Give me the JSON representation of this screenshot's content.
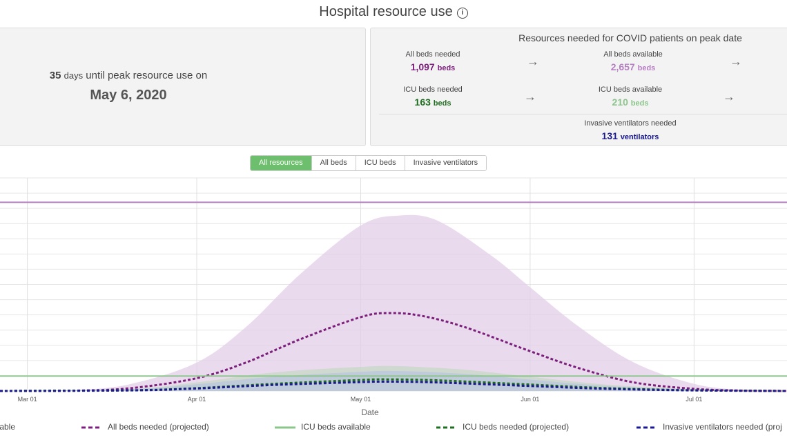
{
  "header": {
    "title": "Hospital resource use",
    "info_icon": "info-circle-icon"
  },
  "peak": {
    "days": "35",
    "days_unit": "days",
    "text": "until peak resource use on",
    "date": "May 6, 2020"
  },
  "resources": {
    "title": "Resources needed for COVID patients on peak date",
    "all_beds_needed": {
      "label": "All beds needed",
      "value": "1,097",
      "unit": "beds"
    },
    "all_beds_available": {
      "label": "All beds available",
      "value": "2,657",
      "unit": "beds"
    },
    "icu_beds_needed": {
      "label": "ICU beds needed",
      "value": "163",
      "unit": "beds"
    },
    "icu_beds_available": {
      "label": "ICU beds available",
      "value": "210",
      "unit": "beds"
    },
    "ventilators_needed": {
      "label": "Invasive ventilators needed",
      "value": "131",
      "unit": "ventilators"
    }
  },
  "tabs": [
    {
      "label": "All resources",
      "active": true
    },
    {
      "label": "All beds",
      "active": false
    },
    {
      "label": "ICU beds",
      "active": false
    },
    {
      "label": "Invasive ventilators",
      "active": false
    }
  ],
  "colors": {
    "all_beds": "#7b1f7b",
    "all_beds_band": "#e3cde8",
    "all_beds_available": "#b57fc2",
    "icu": "#1f6e1f",
    "icu_band": "#b8d8b8",
    "icu_available": "#8cc48c",
    "vent": "#1a1a8c",
    "vent_band": "#b3bde3"
  },
  "chart_data": {
    "type": "line",
    "xlabel": "Date",
    "x_ticks": [
      "Mar 01",
      "Apr 01",
      "May 01",
      "Jun 01",
      "Jul 01"
    ],
    "x_range": [
      "2020-02-25",
      "2020-07-18"
    ],
    "y_range": [
      0,
      3000
    ],
    "grid": true,
    "series": [
      {
        "name": "All beds available",
        "style": "solid",
        "points": [
          [
            "2020-02-25",
            2657
          ],
          [
            "2020-07-18",
            2657
          ]
        ]
      },
      {
        "name": "All beds needed (projected)",
        "style": "dashed",
        "points": [
          [
            "2020-02-25",
            0
          ],
          [
            "2020-03-10",
            5
          ],
          [
            "2020-03-20",
            40
          ],
          [
            "2020-04-01",
            180
          ],
          [
            "2020-04-10",
            400
          ],
          [
            "2020-04-20",
            730
          ],
          [
            "2020-05-01",
            1040
          ],
          [
            "2020-05-06",
            1097
          ],
          [
            "2020-05-12",
            1060
          ],
          [
            "2020-05-20",
            900
          ],
          [
            "2020-06-01",
            560
          ],
          [
            "2020-06-10",
            320
          ],
          [
            "2020-06-20",
            120
          ],
          [
            "2020-07-01",
            30
          ],
          [
            "2020-07-10",
            5
          ],
          [
            "2020-07-18",
            0
          ]
        ],
        "band_upper": [
          [
            "2020-02-25",
            0
          ],
          [
            "2020-03-10",
            15
          ],
          [
            "2020-03-20",
            100
          ],
          [
            "2020-04-01",
            400
          ],
          [
            "2020-04-10",
            900
          ],
          [
            "2020-04-20",
            1650
          ],
          [
            "2020-05-01",
            2330
          ],
          [
            "2020-05-08",
            2470
          ],
          [
            "2020-05-15",
            2400
          ],
          [
            "2020-05-25",
            1900
          ],
          [
            "2020-06-01",
            1460
          ],
          [
            "2020-06-10",
            900
          ],
          [
            "2020-06-20",
            400
          ],
          [
            "2020-07-01",
            100
          ],
          [
            "2020-07-10",
            15
          ],
          [
            "2020-07-18",
            0
          ]
        ],
        "band_lower": [
          [
            "2020-02-25",
            0
          ],
          [
            "2020-07-18",
            0
          ]
        ]
      },
      {
        "name": "ICU beds available",
        "style": "solid",
        "points": [
          [
            "2020-02-25",
            210
          ],
          [
            "2020-07-18",
            210
          ]
        ]
      },
      {
        "name": "ICU beds needed (projected)",
        "style": "dashed",
        "points": [
          [
            "2020-02-25",
            0
          ],
          [
            "2020-03-20",
            10
          ],
          [
            "2020-04-01",
            40
          ],
          [
            "2020-04-15",
            100
          ],
          [
            "2020-05-01",
            155
          ],
          [
            "2020-05-06",
            163
          ],
          [
            "2020-05-15",
            150
          ],
          [
            "2020-06-01",
            90
          ],
          [
            "2020-06-15",
            40
          ],
          [
            "2020-07-01",
            10
          ],
          [
            "2020-07-18",
            0
          ]
        ],
        "band_upper": [
          [
            "2020-02-25",
            0
          ],
          [
            "2020-03-20",
            30
          ],
          [
            "2020-04-01",
            120
          ],
          [
            "2020-04-15",
            260
          ],
          [
            "2020-05-01",
            340
          ],
          [
            "2020-05-08",
            350
          ],
          [
            "2020-05-20",
            300
          ],
          [
            "2020-06-01",
            200
          ],
          [
            "2020-06-15",
            90
          ],
          [
            "2020-07-01",
            25
          ],
          [
            "2020-07-18",
            0
          ]
        ],
        "band_lower": [
          [
            "2020-02-25",
            0
          ],
          [
            "2020-07-18",
            0
          ]
        ]
      },
      {
        "name": "Invasive ventilators needed (projected)",
        "style": "dashed",
        "points": [
          [
            "2020-02-25",
            0
          ],
          [
            "2020-03-20",
            8
          ],
          [
            "2020-04-01",
            35
          ],
          [
            "2020-04-15",
            85
          ],
          [
            "2020-05-01",
            125
          ],
          [
            "2020-05-06",
            131
          ],
          [
            "2020-05-15",
            120
          ],
          [
            "2020-06-01",
            70
          ],
          [
            "2020-06-15",
            30
          ],
          [
            "2020-07-01",
            8
          ],
          [
            "2020-07-18",
            0
          ]
        ],
        "band_upper": [
          [
            "2020-02-25",
            0
          ],
          [
            "2020-03-20",
            25
          ],
          [
            "2020-04-01",
            95
          ],
          [
            "2020-04-15",
            200
          ],
          [
            "2020-05-01",
            270
          ],
          [
            "2020-05-08",
            280
          ],
          [
            "2020-05-20",
            240
          ],
          [
            "2020-06-01",
            160
          ],
          [
            "2020-06-15",
            70
          ],
          [
            "2020-07-01",
            20
          ],
          [
            "2020-07-18",
            0
          ]
        ],
        "band_lower": [
          [
            "2020-02-25",
            0
          ],
          [
            "2020-07-18",
            0
          ]
        ]
      }
    ]
  },
  "legend": [
    {
      "label": "All beds available",
      "display": "ilable",
      "color_key": "all_beds_available",
      "style": "solid"
    },
    {
      "label": "All beds needed (projected)",
      "display": "All beds needed (projected)",
      "color_key": "all_beds",
      "style": "dashed"
    },
    {
      "label": "ICU beds available",
      "display": "ICU beds available",
      "color_key": "icu_available",
      "style": "solid"
    },
    {
      "label": "ICU beds needed (projected)",
      "display": "ICU beds needed (projected)",
      "color_key": "icu",
      "style": "dashed"
    },
    {
      "label": "Invasive ventilators needed (projected)",
      "display": "Invasive ventilators needed (proj",
      "color_key": "vent",
      "style": "dashed"
    }
  ]
}
